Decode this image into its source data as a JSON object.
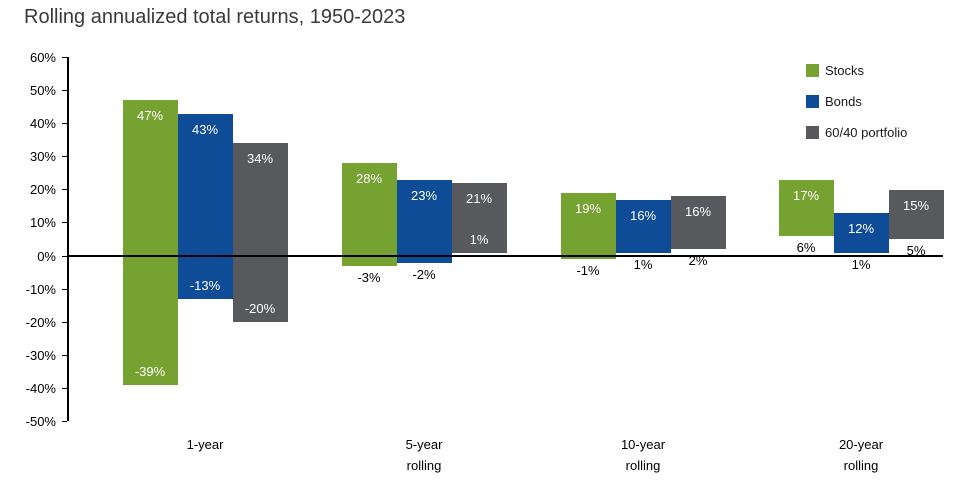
{
  "title": "Rolling annualized total returns, 1950-2023",
  "chart_data": {
    "type": "bar",
    "subtype": "floating-range",
    "title": "Rolling annualized total returns, 1950-2023",
    "categories": [
      "1-year",
      "5-year\nrolling",
      "10-year\nrolling",
      "20-year\nrolling"
    ],
    "series": [
      {
        "name": "Stocks",
        "color": "#76A232",
        "max": [
          47,
          28,
          19,
          17
        ],
        "min": [
          -39,
          -3,
          -1,
          6
        ],
        "min_label_inside": [
          true,
          false,
          false,
          false
        ]
      },
      {
        "name": "Bonds",
        "color": "#0E4C97",
        "max": [
          43,
          23,
          16,
          12
        ],
        "min": [
          -13,
          -2,
          1,
          1
        ],
        "min_label_inside": [
          true,
          false,
          false,
          false
        ]
      },
      {
        "name": "60/40 portfolio",
        "color": "#57595C",
        "max": [
          34,
          21,
          16,
          15
        ],
        "min": [
          -20,
          1,
          2,
          5
        ],
        "min_label_inside": [
          true,
          true,
          false,
          false
        ]
      }
    ],
    "xlabel": "",
    "ylabel": "",
    "ylim": [
      -50,
      60
    ],
    "ytick_step": 10,
    "ytick_format": "percent",
    "grid": false,
    "legend_position": "top-right",
    "bar_label_format": "percent"
  }
}
